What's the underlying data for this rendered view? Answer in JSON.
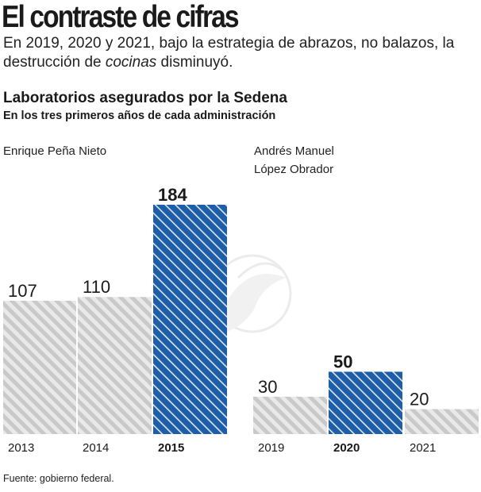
{
  "header": {
    "headline": "El contraste de cifras",
    "lede_before": "En 2019, 2020 y 2021, bajo la estrategia de abrazos, no balazos, la destrucción de ",
    "lede_emph": "cocinas",
    "lede_after": " disminuyó."
  },
  "admins": {
    "left": "Enrique Peña Nieto",
    "right_line1": "Andrés Manuel",
    "right_line2": "López Obrador"
  },
  "source": "Fuente: gobierno federal.",
  "colors": {
    "highlight": "#1e5ea8",
    "muted": "#c9c9c9",
    "muted_bg": "#e9e9e9"
  },
  "chart_data": {
    "type": "bar",
    "title": "Laboratorios asegurados por la Sedena",
    "subtitle": "En los tres primeros años de cada administración",
    "categories": [
      "2013",
      "2014",
      "2015",
      "2019",
      "2020",
      "2021"
    ],
    "values": [
      107,
      110,
      184,
      30,
      50,
      20
    ],
    "highlighted": [
      "2015",
      "2020"
    ],
    "groups": [
      {
        "label": "Enrique Peña Nieto",
        "categories": [
          "2013",
          "2014",
          "2015"
        ]
      },
      {
        "label": "Andrés Manuel López Obrador",
        "categories": [
          "2019",
          "2020",
          "2021"
        ]
      }
    ],
    "xlabel": "",
    "ylabel": "",
    "ylim": [
      0,
      184
    ],
    "grid": false,
    "legend": "none"
  }
}
